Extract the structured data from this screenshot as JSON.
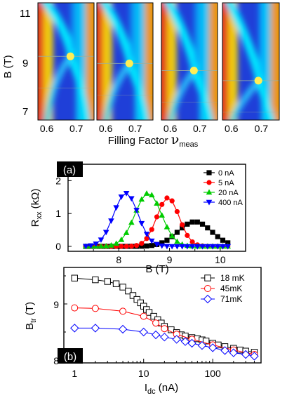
{
  "chart_data": [
    {
      "type": "heatmap",
      "panel_count": 4,
      "ylabel": "B (T)",
      "y_ticks": [
        "11",
        "9",
        "7"
      ],
      "ylim": [
        6.2,
        12.0
      ],
      "xlabel_prefix": "Filling Factor ",
      "xlabel_nu": "ν",
      "xlabel_sub": "meas",
      "x_ticks": [
        "0.6",
        "0.7"
      ],
      "xlim": [
        0.57,
        0.76
      ],
      "colormap": [
        "#00008f",
        "#0050ff",
        "#00d8ff",
        "#ffd800",
        "#ff3000",
        "#800000"
      ],
      "transition_markers": [
        {
          "x": 0.68,
          "y": 9.35
        },
        {
          "x": 0.68,
          "y": 9.0
        },
        {
          "x": 0.68,
          "y": 8.65
        },
        {
          "x": 0.69,
          "y": 8.15
        }
      ],
      "marker_color": "#ffee55"
    },
    {
      "type": "line",
      "panel_label": "(a)",
      "xlabel": "B (T)",
      "ylabel_main": "R",
      "ylabel_sub": "xx",
      "ylabel_unit": " (kΩ)",
      "xlim": [
        7.0,
        10.5
      ],
      "ylim": [
        -0.15,
        2.5
      ],
      "x_ticks": [
        "8",
        "9",
        "10"
      ],
      "y_ticks": [
        "0",
        "1",
        "2"
      ],
      "series": [
        {
          "name": "0 nA",
          "color": "#000000",
          "marker": "square",
          "peak_x": 9.5,
          "peak_y": 0.75,
          "width": 0.33
        },
        {
          "name": "5 nA",
          "color": "#ff0000",
          "marker": "circle",
          "peak_x": 8.97,
          "peak_y": 1.48,
          "width": 0.22
        },
        {
          "name": "20 nA",
          "color": "#00cc00",
          "marker": "triangle-up",
          "peak_x": 8.58,
          "peak_y": 1.62,
          "width": 0.26
        },
        {
          "name": "400 nA",
          "color": "#0000ff",
          "marker": "triangle-down",
          "peak_x": 8.14,
          "peak_y": 1.62,
          "width": 0.24
        }
      ]
    },
    {
      "type": "line",
      "panel_label": "(b)",
      "xlabel_main": "I",
      "xlabel_sub": "dc",
      "xlabel_unit": " (nA)",
      "ylabel_main": "B",
      "ylabel_sub": "tr",
      "ylabel_unit": " (T)",
      "x_scale": "log",
      "xlim": [
        0.7,
        500
      ],
      "ylim": [
        7.95,
        9.65
      ],
      "x_ticks": [
        "1",
        "10",
        "100"
      ],
      "y_ticks": [
        "8",
        "9"
      ],
      "series": [
        {
          "name": "18 mK",
          "color": "#000000",
          "marker": "square-open",
          "x": [
            1,
            2,
            3,
            4,
            5,
            6,
            7,
            8,
            9,
            10,
            11,
            12,
            14,
            16,
            18,
            20,
            25,
            30,
            35,
            40,
            50,
            60,
            70,
            80,
            100,
            120,
            150,
            200,
            250,
            300,
            400
          ],
          "y": [
            9.46,
            9.43,
            9.4,
            9.36,
            9.3,
            9.23,
            9.15,
            9.08,
            9.02,
            8.96,
            8.9,
            8.85,
            8.78,
            8.72,
            8.66,
            8.6,
            8.54,
            8.49,
            8.45,
            8.43,
            8.4,
            8.38,
            8.36,
            8.34,
            8.3,
            8.27,
            8.24,
            8.21,
            8.18,
            8.16,
            8.14
          ]
        },
        {
          "name": "45mK",
          "color": "#ff0000",
          "marker": "circle-open",
          "x": [
            1,
            2,
            5,
            10,
            15,
            20,
            30,
            50,
            100,
            200,
            400
          ],
          "y": [
            8.93,
            8.92,
            8.87,
            8.78,
            8.66,
            8.56,
            8.46,
            8.37,
            8.27,
            8.18,
            8.1
          ]
        },
        {
          "name": "71mK",
          "color": "#0000ff",
          "marker": "diamond-open",
          "x": [
            1,
            2,
            5,
            10,
            15,
            20,
            30,
            40,
            50,
            70,
            100,
            150,
            200,
            300,
            400
          ],
          "y": [
            8.57,
            8.57,
            8.55,
            8.5,
            8.45,
            8.41,
            8.37,
            8.33,
            8.3,
            8.26,
            8.22,
            8.17,
            8.13,
            8.1,
            8.07
          ]
        }
      ]
    }
  ]
}
